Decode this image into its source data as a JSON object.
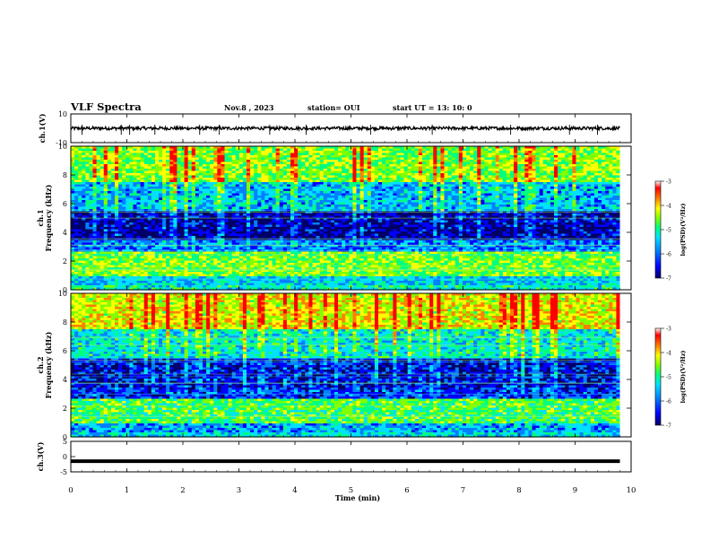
{
  "header": {
    "title": "VLF Spectra",
    "date": "Nov.8 , 2023",
    "station": "station= OUI",
    "start": "start UT = 13: 10: 0"
  },
  "chart_data": [
    {
      "type": "line",
      "name": "ch1-waveform",
      "ylabel": "ch.1(V)",
      "ylim": [
        -10,
        10
      ],
      "yticks": [
        "10",
        "-10"
      ],
      "baseline": 0,
      "spikes_at_min": [
        0.2,
        0.9,
        1.05,
        1.5,
        2.3,
        2.65,
        3.55,
        4.2,
        5.35,
        6.45,
        7.85,
        8.9,
        9.4
      ]
    },
    {
      "type": "heatmap",
      "name": "ch1-spectrogram",
      "ylabel": "ch.1",
      "ylabel2": "Frequency (kHz)",
      "ylim": [
        0,
        10
      ],
      "yticks": [
        "0",
        "2",
        "4",
        "6",
        "8",
        "10"
      ],
      "xlim": [
        0,
        9.8
      ],
      "colorbar": {
        "label": "log(PSD)(V²/Hz)",
        "range": [
          -7,
          -3
        ],
        "ticks": [
          "-3",
          "-4",
          "-5",
          "-6",
          "-7"
        ]
      },
      "bands_khz": [
        {
          "from": 0,
          "to": 0.3,
          "level": -5.2
        },
        {
          "from": 0.3,
          "to": 1.0,
          "level": -5.5
        },
        {
          "from": 1.0,
          "to": 2.7,
          "level": -4.6
        },
        {
          "from": 2.7,
          "to": 3.5,
          "level": -5.9
        },
        {
          "from": 3.5,
          "to": 5.5,
          "level": -6.6
        },
        {
          "from": 5.5,
          "to": 7.5,
          "level": -5.6
        },
        {
          "from": 7.5,
          "to": 10,
          "level": -4.6
        }
      ]
    },
    {
      "type": "heatmap",
      "name": "ch2-spectrogram",
      "ylabel": "ch.2",
      "ylabel2": "Frequency (kHz)",
      "ylim": [
        0,
        10
      ],
      "yticks": [
        "0",
        "2",
        "4",
        "6",
        "8",
        "10"
      ],
      "xlim": [
        0,
        9.8
      ],
      "colorbar": {
        "label": "log(PSD)(V²/Hz)",
        "range": [
          -7,
          -3
        ],
        "ticks": [
          "-3",
          "-4",
          "-5",
          "-6",
          "-7"
        ]
      },
      "bands_khz": [
        {
          "from": 0,
          "to": 0.3,
          "level": -5.4
        },
        {
          "from": 0.3,
          "to": 1.0,
          "level": -5.7
        },
        {
          "from": 1.0,
          "to": 2.6,
          "level": -4.8
        },
        {
          "from": 2.6,
          "to": 3.5,
          "level": -6.2
        },
        {
          "from": 3.5,
          "to": 5.5,
          "level": -6.4
        },
        {
          "from": 5.5,
          "to": 7.5,
          "level": -5.3
        },
        {
          "from": 7.5,
          "to": 10,
          "level": -4.2
        }
      ]
    },
    {
      "type": "line",
      "name": "ch3-waveform",
      "ylabel": "ch.3(V)",
      "ylim": [
        -5,
        5
      ],
      "yticks": [
        "5",
        "0",
        "-5"
      ],
      "baseline": -1.5
    }
  ],
  "x_axis": {
    "xlabel": "Time (min)",
    "xlim": [
      0,
      10
    ],
    "ticks": [
      "0",
      "1",
      "2",
      "3",
      "4",
      "5",
      "6",
      "7",
      "8",
      "9",
      "10"
    ]
  },
  "colors": {
    "cmap": [
      "#000066",
      "#0000ff",
      "#0080ff",
      "#00e0ff",
      "#00ff80",
      "#80ff00",
      "#ffff00",
      "#ff8000",
      "#ff0000",
      "#ffffff"
    ],
    "line": "#000000",
    "background": "#ffffff"
  }
}
